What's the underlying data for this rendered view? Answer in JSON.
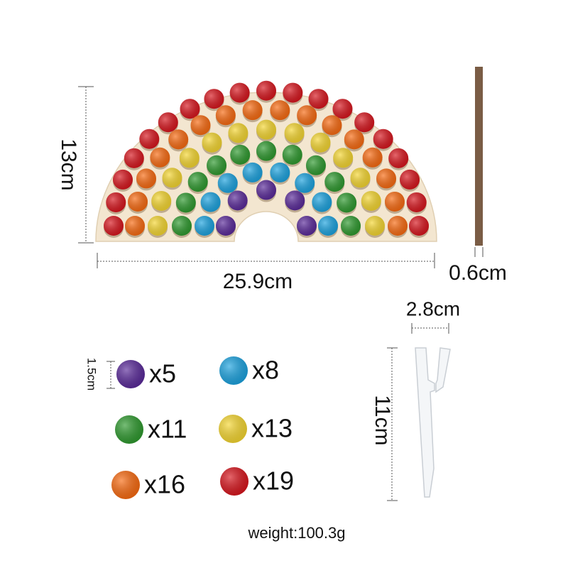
{
  "board": {
    "height": "13cm",
    "width": "25.9cm"
  },
  "stick": {
    "diameter": "0.6cm"
  },
  "tweezers": {
    "width": "2.8cm",
    "length": "11cm"
  },
  "pompoms": {
    "size": "1.5cm",
    "items": [
      {
        "color": "purple",
        "count": "x5"
      },
      {
        "color": "blue",
        "count": "x8"
      },
      {
        "color": "green",
        "count": "x11"
      },
      {
        "color": "yellow",
        "count": "x13"
      },
      {
        "color": "orange",
        "count": "x16"
      },
      {
        "color": "red",
        "count": "x19"
      }
    ]
  },
  "weight": "weight:100.3g"
}
